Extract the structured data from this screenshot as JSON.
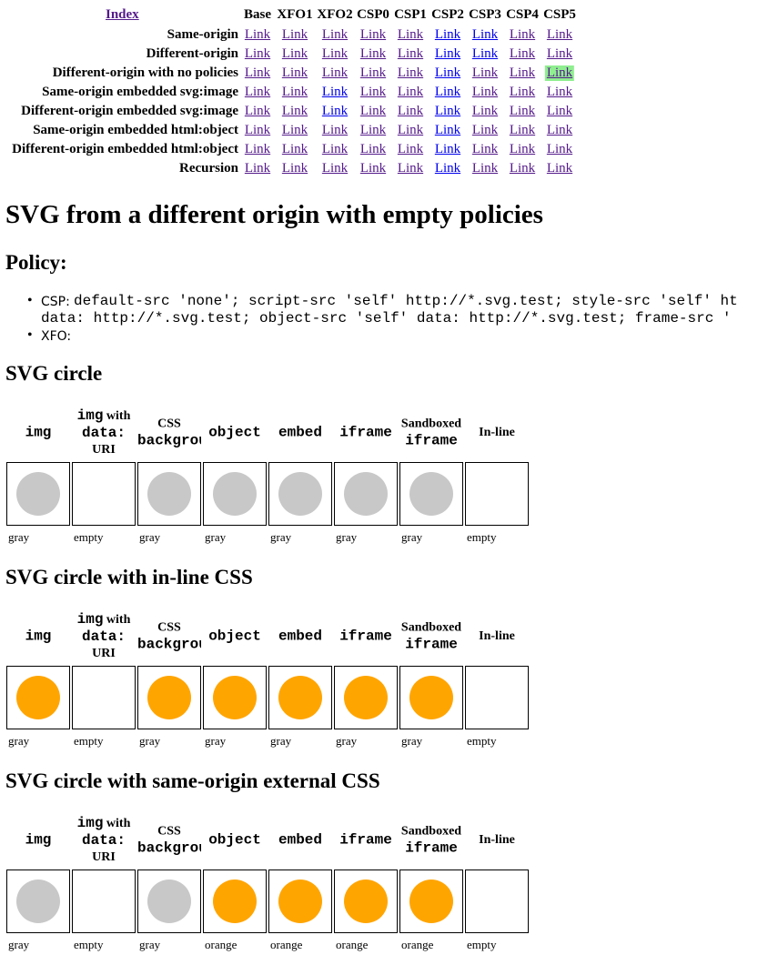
{
  "nav": {
    "index": "Index",
    "columns": [
      "Base",
      "XFO1",
      "XFO2",
      "CSP0",
      "CSP1",
      "CSP2",
      "CSP3",
      "CSP4",
      "CSP5"
    ],
    "highlight": [
      2,
      8
    ],
    "rows": [
      {
        "label": "Same-origin",
        "links": [
          "Link",
          "Link",
          "Link",
          "Link",
          "Link",
          "Link",
          "Link",
          "Link",
          "Link"
        ]
      },
      {
        "label": "Different-origin",
        "links": [
          "Link",
          "Link",
          "Link",
          "Link",
          "Link",
          "Link",
          "Link",
          "Link",
          "Link"
        ]
      },
      {
        "label": "Different-origin with no policies",
        "links": [
          "Link",
          "Link",
          "Link",
          "Link",
          "Link",
          "Link",
          "Link",
          "Link",
          "Link"
        ]
      },
      {
        "label": "Same-origin embedded svg:image",
        "links": [
          "Link",
          "Link",
          "Link",
          "Link",
          "Link",
          "Link",
          "Link",
          "Link",
          "Link"
        ]
      },
      {
        "label": "Different-origin embedded svg:image",
        "links": [
          "Link",
          "Link",
          "Link",
          "Link",
          "Link",
          "Link",
          "Link",
          "Link",
          "Link"
        ]
      },
      {
        "label": "Same-origin embedded html:object",
        "links": [
          "Link",
          "Link",
          "Link",
          "Link",
          "Link",
          "Link",
          "Link",
          "Link",
          "Link"
        ]
      },
      {
        "label": "Different-origin embedded html:object",
        "links": [
          "Link",
          "Link",
          "Link",
          "Link",
          "Link",
          "Link",
          "Link",
          "Link",
          "Link"
        ]
      },
      {
        "label": "Recursion",
        "links": [
          "Link",
          "Link",
          "Link",
          "Link",
          "Link",
          "Link",
          "Link",
          "Link",
          "Link"
        ]
      }
    ]
  },
  "title": "SVG from a different origin with empty policies",
  "policy": {
    "heading": "Policy:",
    "items": [
      {
        "label": "CSP:",
        "lines": [
          "default-src 'none'; script-src 'self' http://*.svg.test; style-src 'self' ht",
          "data: http://*.svg.test; object-src 'self' data: http://*.svg.test; frame-src '"
        ]
      },
      {
        "label": "XFO:",
        "lines": []
      }
    ]
  },
  "test_columns": [
    [
      [
        {
          "text": "img",
          "code": true
        }
      ]
    ],
    [
      [
        {
          "text": "img",
          "code": true
        },
        {
          "text": " with"
        }
      ],
      [
        {
          "text": "data:",
          "code": true
        }
      ],
      [
        {
          "text": "URI"
        }
      ]
    ],
    [
      [
        {
          "text": "CSS"
        }
      ],
      [
        {
          "text": "background",
          "code": true
        }
      ]
    ],
    [
      [
        {
          "text": "object",
          "code": true
        }
      ]
    ],
    [
      [
        {
          "text": "embed",
          "code": true
        }
      ]
    ],
    [
      [
        {
          "text": "iframe",
          "code": true
        }
      ]
    ],
    [
      [
        {
          "text": "Sandboxed"
        }
      ],
      [
        {
          "text": "iframe",
          "code": true
        }
      ]
    ],
    [
      [
        {
          "text": "In-line"
        }
      ]
    ]
  ],
  "sections": [
    {
      "title": "SVG circle",
      "cells": [
        {
          "circle": "#c8c8c8",
          "caption": "gray"
        },
        {
          "circle": null,
          "caption": "empty"
        },
        {
          "circle": "#c8c8c8",
          "caption": "gray"
        },
        {
          "circle": "#c8c8c8",
          "caption": "gray"
        },
        {
          "circle": "#c8c8c8",
          "caption": "gray"
        },
        {
          "circle": "#c8c8c8",
          "caption": "gray"
        },
        {
          "circle": "#c8c8c8",
          "caption": "gray"
        },
        {
          "circle": null,
          "caption": "empty"
        }
      ]
    },
    {
      "title": "SVG circle with in-line CSS",
      "cells": [
        {
          "circle": "#ffa500",
          "caption": "gray"
        },
        {
          "circle": null,
          "caption": "empty"
        },
        {
          "circle": "#ffa500",
          "caption": "gray"
        },
        {
          "circle": "#ffa500",
          "caption": "gray"
        },
        {
          "circle": "#ffa500",
          "caption": "gray"
        },
        {
          "circle": "#ffa500",
          "caption": "gray"
        },
        {
          "circle": "#ffa500",
          "caption": "gray"
        },
        {
          "circle": null,
          "caption": "empty"
        }
      ]
    },
    {
      "title": "SVG circle with same-origin external CSS",
      "cells": [
        {
          "circle": "#c8c8c8",
          "caption": "gray"
        },
        {
          "circle": null,
          "caption": "empty"
        },
        {
          "circle": "#c8c8c8",
          "caption": "gray"
        },
        {
          "circle": "#ffa500",
          "caption": "orange"
        },
        {
          "circle": "#ffa500",
          "caption": "orange"
        },
        {
          "circle": "#ffa500",
          "caption": "orange"
        },
        {
          "circle": "#ffa500",
          "caption": "orange"
        },
        {
          "circle": null,
          "caption": "empty"
        }
      ]
    }
  ]
}
